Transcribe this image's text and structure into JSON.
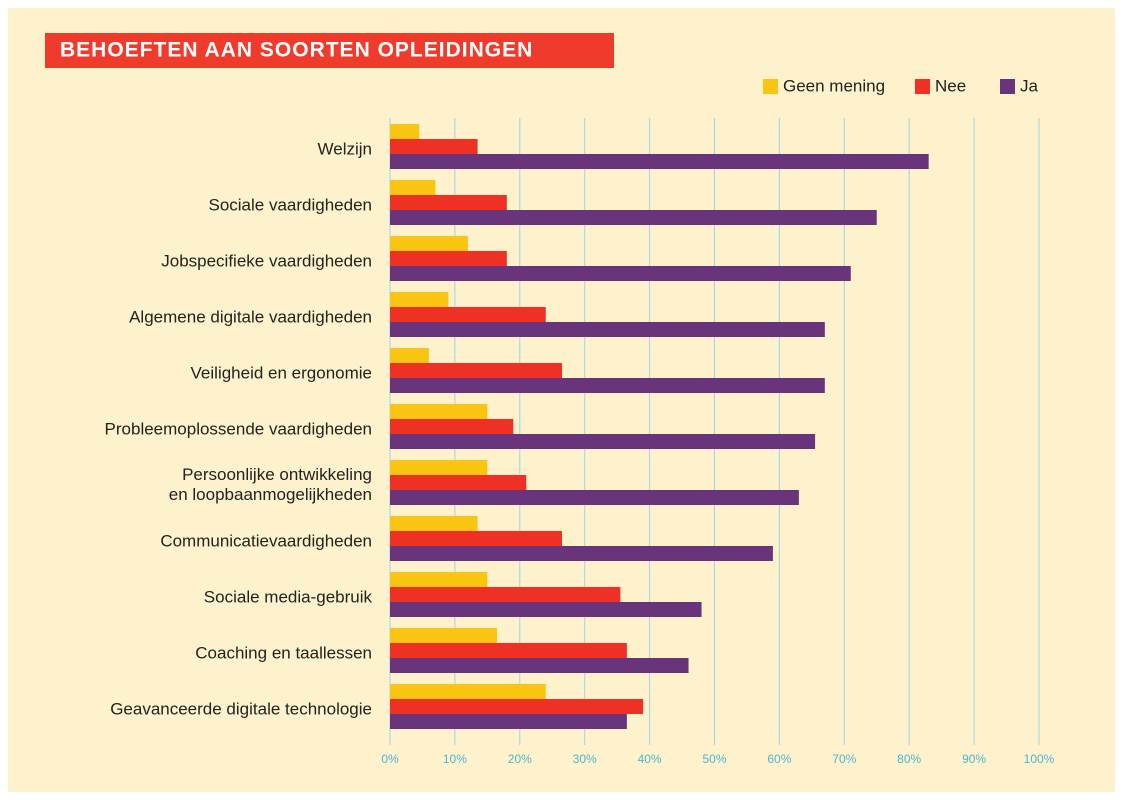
{
  "chart_data": {
    "type": "barh",
    "title": "BEHOEFTEN AAN SOORTEN OPLEIDINGEN",
    "categories": [
      "Welzijn",
      "Sociale vaardigheden",
      "Jobspecifieke vaardigheden",
      "Algemene digitale vaardigheden",
      "Veiligheid en ergonomie",
      "Probleemoplossende vaardigheden",
      "Persoonlijke ontwikkeling\nen loopbaanmogelijkheden",
      "Communicatievaardigheden",
      "Sociale media-gebruik",
      "Coaching en taallessen",
      "Geavanceerde digitale technologie"
    ],
    "series": [
      {
        "name": "Geen mening",
        "color": "#f9c512",
        "values": [
          4.5,
          7,
          12,
          9,
          6,
          15,
          15,
          13.5,
          15,
          16.5,
          24
        ]
      },
      {
        "name": "Nee",
        "color": "#ee3124",
        "values": [
          13.5,
          18,
          18,
          24,
          26.5,
          19,
          21,
          26.5,
          35.5,
          36.5,
          39
        ]
      },
      {
        "name": "Ja",
        "color": "#6a347c",
        "values": [
          83,
          75,
          71,
          67,
          67,
          65.5,
          63,
          59,
          48,
          46,
          36.5
        ]
      }
    ],
    "xlim": [
      0,
      100
    ],
    "xticks": [
      {
        "value": 0,
        "label": "0%"
      },
      {
        "value": 10,
        "label": "10%"
      },
      {
        "value": 20,
        "label": "20%"
      },
      {
        "value": 30,
        "label": "30%"
      },
      {
        "value": 40,
        "label": "40%"
      },
      {
        "value": 50,
        "label": "50%"
      },
      {
        "value": 60,
        "label": "60%"
      },
      {
        "value": 70,
        "label": "70%"
      },
      {
        "value": 80,
        "label": "80%"
      },
      {
        "value": 90,
        "label": "90%"
      },
      {
        "value": 100,
        "label": "100%"
      }
    ],
    "grid": true,
    "legend": "top-right"
  }
}
